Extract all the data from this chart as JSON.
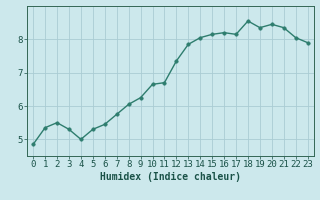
{
  "x": [
    0,
    1,
    2,
    3,
    4,
    5,
    6,
    7,
    8,
    9,
    10,
    11,
    12,
    13,
    14,
    15,
    16,
    17,
    18,
    19,
    20,
    21,
    22,
    23
  ],
  "y": [
    4.85,
    5.35,
    5.5,
    5.3,
    5.0,
    5.3,
    5.45,
    5.75,
    6.05,
    6.25,
    6.65,
    6.7,
    7.35,
    7.85,
    8.05,
    8.15,
    8.2,
    8.15,
    8.55,
    8.35,
    8.45,
    8.35,
    8.05,
    7.9
  ],
  "line_color": "#2e7d6e",
  "marker_color": "#2e7d6e",
  "bg_color": "#cce8ec",
  "grid_color": "#aaccd4",
  "axis_color": "#336655",
  "tick_color": "#1a5248",
  "xlabel": "Humidex (Indice chaleur)",
  "ylim": [
    4.5,
    9.0
  ],
  "xlim": [
    -0.5,
    23.5
  ],
  "yticks": [
    5,
    6,
    7,
    8
  ],
  "xticks": [
    0,
    1,
    2,
    3,
    4,
    5,
    6,
    7,
    8,
    9,
    10,
    11,
    12,
    13,
    14,
    15,
    16,
    17,
    18,
    19,
    20,
    21,
    22,
    23
  ],
  "xlabel_fontsize": 7.0,
  "tick_fontsize": 6.5,
  "linewidth": 1.0,
  "markersize": 2.5
}
